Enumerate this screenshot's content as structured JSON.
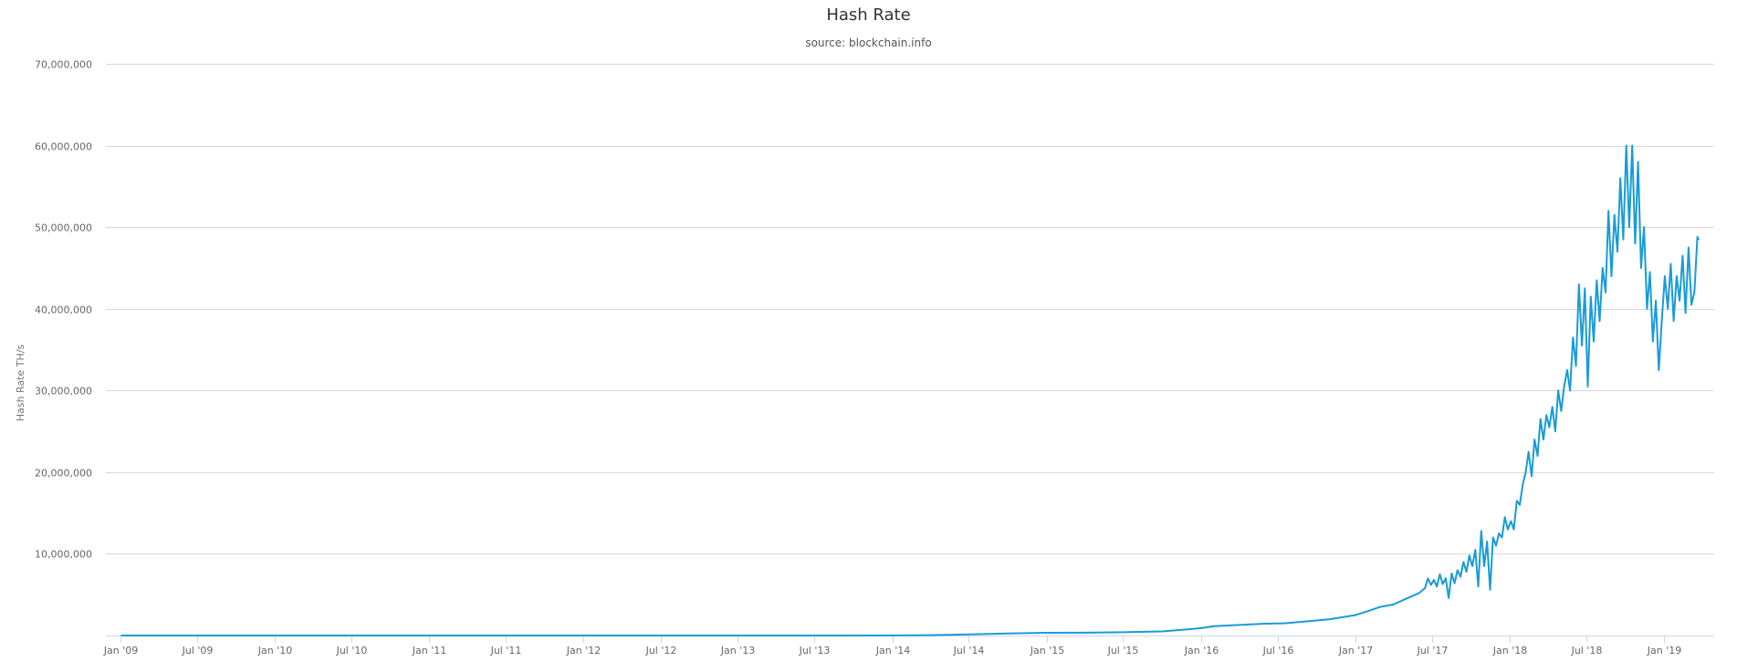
{
  "chart_data": {
    "type": "line",
    "title": "Hash Rate",
    "subtitle": "source: blockchain.info",
    "xlabel": "",
    "ylabel": "Hash Rate TH/s",
    "ylim": [
      0,
      70000000
    ],
    "xlim": [
      "2009-01-01",
      "2019-07-15"
    ],
    "grid": true,
    "legend": "none",
    "line_color": "#1a9bd7",
    "yticks": [
      {
        "value": 10000000,
        "label": "10,000,000"
      },
      {
        "value": 20000000,
        "label": "20,000,000"
      },
      {
        "value": 30000000,
        "label": "30,000,000"
      },
      {
        "value": 40000000,
        "label": "40,000,000"
      },
      {
        "value": 50000000,
        "label": "50,000,000"
      },
      {
        "value": 60000000,
        "label": "60,000,000"
      },
      {
        "value": 70000000,
        "label": "70,000,000"
      }
    ],
    "xticks": [
      {
        "date": "2009-01-01",
        "label": "Jan '09"
      },
      {
        "date": "2009-07-01",
        "label": "Jul '09"
      },
      {
        "date": "2010-01-01",
        "label": "Jan '10"
      },
      {
        "date": "2010-07-01",
        "label": "Jul '10"
      },
      {
        "date": "2011-01-01",
        "label": "Jan '11"
      },
      {
        "date": "2011-07-01",
        "label": "Jul '11"
      },
      {
        "date": "2012-01-01",
        "label": "Jan '12"
      },
      {
        "date": "2012-07-01",
        "label": "Jul '12"
      },
      {
        "date": "2013-01-01",
        "label": "Jan '13"
      },
      {
        "date": "2013-07-01",
        "label": "Jul '13"
      },
      {
        "date": "2014-01-01",
        "label": "Jan '14"
      },
      {
        "date": "2014-07-01",
        "label": "Jul '14"
      },
      {
        "date": "2015-01-01",
        "label": "Jan '15"
      },
      {
        "date": "2015-07-01",
        "label": "Jul '15"
      },
      {
        "date": "2016-01-01",
        "label": "Jan '16"
      },
      {
        "date": "2016-07-01",
        "label": "Jul '16"
      },
      {
        "date": "2017-01-01",
        "label": "Jan '17"
      },
      {
        "date": "2017-07-01",
        "label": "Jul '17"
      },
      {
        "date": "2018-01-01",
        "label": "Jan '18"
      },
      {
        "date": "2018-07-01",
        "label": "Jul '18"
      },
      {
        "date": "2019-01-01",
        "label": "Jan '19"
      }
    ],
    "series": [
      {
        "x": [
          "2009-01-03",
          "2010-01-01",
          "2011-01-01",
          "2012-01-01",
          "2013-01-01",
          "2013-07-01",
          "2013-10-01",
          "2014-01-01",
          "2014-04-01",
          "2014-07-01",
          "2014-10-01",
          "2015-01-01",
          "2015-04-01",
          "2015-07-01",
          "2015-10-01",
          "2015-12-01",
          "2016-01-01",
          "2016-02-01",
          "2016-04-01",
          "2016-06-01",
          "2016-07-15",
          "2016-09-01",
          "2016-11-01",
          "2017-01-01",
          "2017-02-01",
          "2017-03-01",
          "2017-04-01",
          "2017-05-01",
          "2017-06-01",
          "2017-06-15",
          "2017-06-22",
          "2017-06-29",
          "2017-07-06",
          "2017-07-13",
          "2017-07-20",
          "2017-07-27",
          "2017-08-03",
          "2017-08-10",
          "2017-08-17",
          "2017-08-24",
          "2017-08-31",
          "2017-09-07",
          "2017-09-14",
          "2017-09-21",
          "2017-09-28",
          "2017-10-05",
          "2017-10-12",
          "2017-10-19",
          "2017-10-26",
          "2017-11-02",
          "2017-11-09",
          "2017-11-16",
          "2017-11-23",
          "2017-11-30",
          "2017-12-07",
          "2017-12-14",
          "2017-12-21",
          "2017-12-28",
          "2018-01-04",
          "2018-01-11",
          "2018-01-18",
          "2018-01-25",
          "2018-02-01",
          "2018-02-08",
          "2018-02-15",
          "2018-02-22",
          "2018-03-01",
          "2018-03-08",
          "2018-03-15",
          "2018-03-22",
          "2018-03-29",
          "2018-04-05",
          "2018-04-12",
          "2018-04-19",
          "2018-04-26",
          "2018-05-03",
          "2018-05-10",
          "2018-05-17",
          "2018-05-24",
          "2018-05-31",
          "2018-06-07",
          "2018-06-14",
          "2018-06-21",
          "2018-06-28",
          "2018-07-05",
          "2018-07-12",
          "2018-07-19",
          "2018-07-26",
          "2018-08-02",
          "2018-08-09",
          "2018-08-16",
          "2018-08-23",
          "2018-08-30",
          "2018-09-06",
          "2018-09-13",
          "2018-09-20",
          "2018-09-27",
          "2018-10-04",
          "2018-10-11",
          "2018-10-18",
          "2018-10-25",
          "2018-11-01",
          "2018-11-08",
          "2018-11-15",
          "2018-11-22",
          "2018-11-29",
          "2018-12-06",
          "2018-12-13",
          "2018-12-20",
          "2018-12-27",
          "2019-01-03",
          "2019-01-10",
          "2019-01-17",
          "2019-01-24",
          "2019-01-31",
          "2019-02-07",
          "2019-02-14",
          "2019-02-21",
          "2019-02-28",
          "2019-03-07",
          "2019-03-14",
          "2019-03-21",
          "2019-03-24"
        ],
        "values": [
          0,
          0,
          5,
          10,
          25,
          1000,
          4000,
          12000,
          50000,
          130000,
          250000,
          330000,
          350000,
          400000,
          500000,
          750000,
          900000,
          1150000,
          1300000,
          1450000,
          1500000,
          1700000,
          2000000,
          2500000,
          3000000,
          3500000,
          3800000,
          4500000,
          5200000,
          5800000,
          7000000,
          6200000,
          6800000,
          6000000,
          7500000,
          6300000,
          7000000,
          4600000,
          7600000,
          6400000,
          8000000,
          7200000,
          9000000,
          7800000,
          9800000,
          8500000,
          10500000,
          6000000,
          12800000,
          8500000,
          11500000,
          5600000,
          12000000,
          11000000,
          12500000,
          12000000,
          14500000,
          13000000,
          14000000,
          13000000,
          16500000,
          16000000,
          18500000,
          20000000,
          22500000,
          19500000,
          24000000,
          22000000,
          26500000,
          24000000,
          27000000,
          25500000,
          28000000,
          25000000,
          30000000,
          27500000,
          30500000,
          32500000,
          30000000,
          36500000,
          33000000,
          43000000,
          35500000,
          42500000,
          30500000,
          41500000,
          36000000,
          43500000,
          38500000,
          45000000,
          42000000,
          52000000,
          44000000,
          51500000,
          47000000,
          56000000,
          48500000,
          60000000,
          50000000,
          60000000,
          48000000,
          58000000,
          45000000,
          50000000,
          40000000,
          44500000,
          36000000,
          41000000,
          32500000,
          38500000,
          44000000,
          40000000,
          45500000,
          38500000,
          44000000,
          41000000,
          46500000,
          39500000,
          47500000,
          40500000,
          42000000,
          48800000,
          48500000
        ]
      }
    ]
  }
}
